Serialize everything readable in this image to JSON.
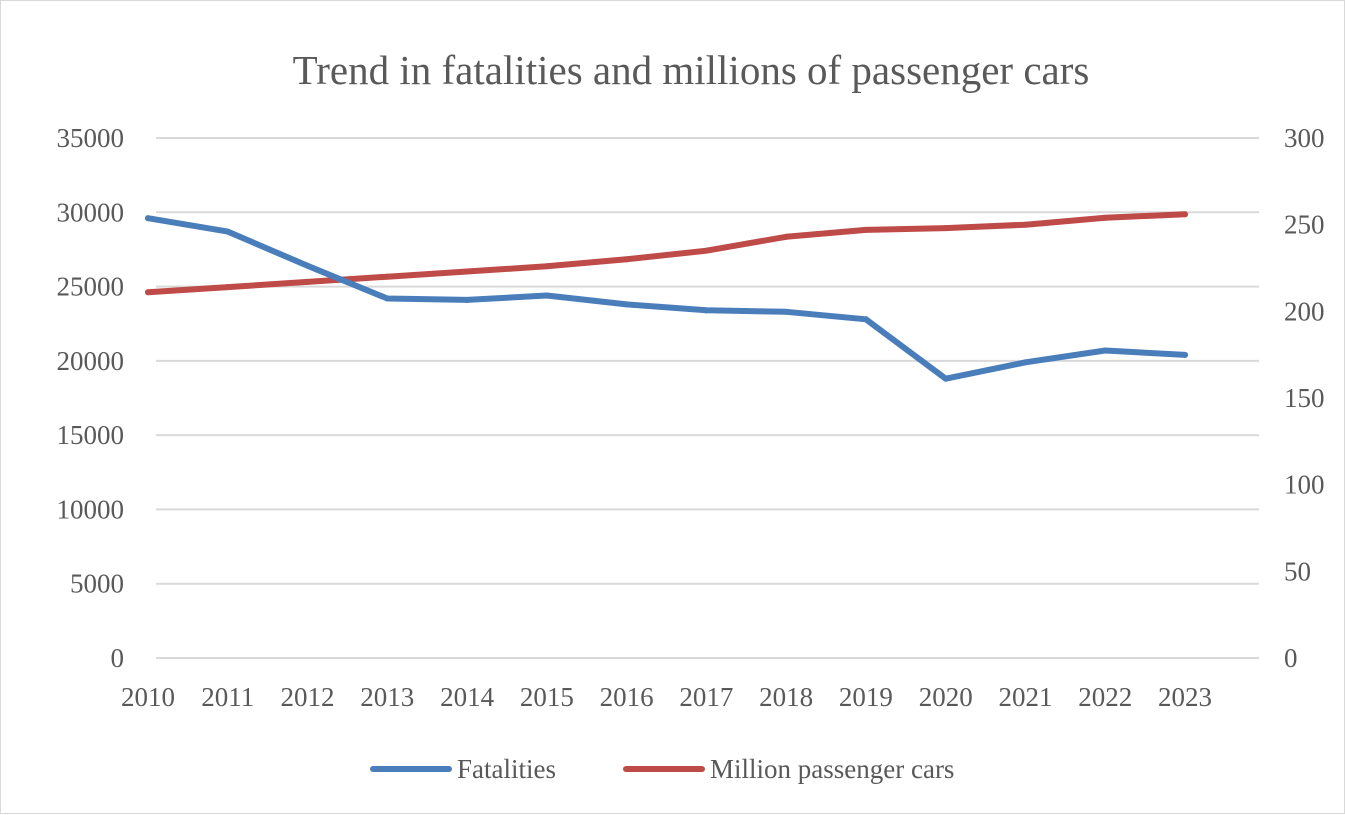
{
  "chart_data": {
    "type": "line",
    "title": "Trend in fatalities and millions of passenger cars",
    "xlabel": "",
    "ylabel": "",
    "categories": [
      "2010",
      "2011",
      "2012",
      "2013",
      "2014",
      "2015",
      "2016",
      "2017",
      "2018",
      "2019",
      "2020",
      "2021",
      "2022",
      "2023"
    ],
    "y_left": {
      "ylim": [
        0,
        35000
      ],
      "ticks": [
        "0",
        "5000",
        "10000",
        "15000",
        "20000",
        "25000",
        "30000",
        "35000"
      ]
    },
    "y_right": {
      "ylim": [
        0,
        300
      ],
      "ticks": [
        "0",
        "50",
        "100",
        "150",
        "200",
        "250",
        "300"
      ]
    },
    "grid": true,
    "legend_position": "bottom",
    "series": [
      {
        "name": "Fatalities",
        "axis": "left",
        "color": "#4a7ebb",
        "values": [
          29600,
          28700,
          26400,
          24200,
          24100,
          24400,
          23800,
          23400,
          23300,
          22800,
          18800,
          19900,
          20700,
          20400
        ]
      },
      {
        "name": "Million passenger cars",
        "axis": "right",
        "color": "#be4b48",
        "values": [
          211,
          214,
          217,
          220,
          223,
          226,
          230,
          235,
          243,
          247,
          248,
          250,
          254,
          256
        ]
      }
    ]
  }
}
